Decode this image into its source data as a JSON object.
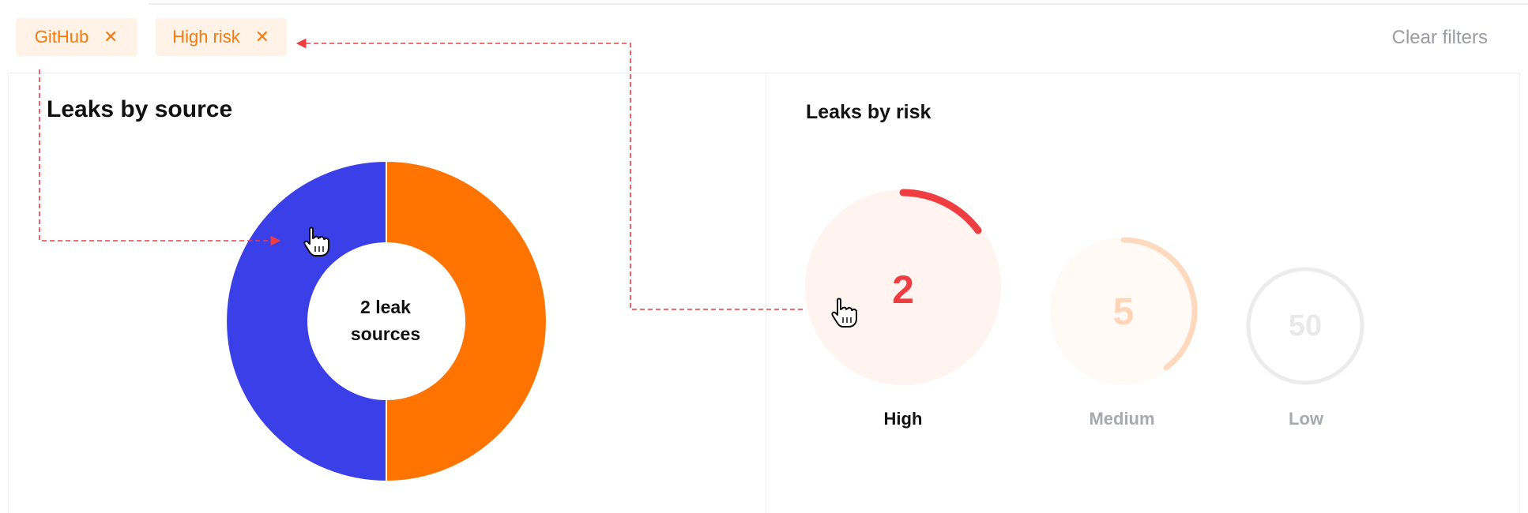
{
  "filters": {
    "chips": [
      {
        "label": "GitHub",
        "remove_icon": "close-icon"
      },
      {
        "label": "High risk",
        "remove_icon": "close-icon"
      }
    ],
    "clear_label": "Clear filters"
  },
  "leaks_by_source": {
    "title": "Leaks by source",
    "center_line1": "2 leak",
    "center_line2": "sources",
    "chart_data": {
      "type": "pie",
      "slices": [
        {
          "value": 50,
          "color": "#ff7300"
        },
        {
          "value": 50,
          "color": "#3b3fe8"
        }
      ]
    }
  },
  "leaks_by_risk": {
    "title": "Leaks by risk",
    "gauges": [
      {
        "value": "2",
        "label": "High",
        "color": "#ef3d42",
        "active": true
      },
      {
        "value": "5",
        "label": "Medium",
        "color": "#ffd5b5",
        "active": false
      },
      {
        "value": "50",
        "label": "Low",
        "color": "#e6e6e8",
        "active": false
      }
    ]
  },
  "colors": {
    "accent": "#f27a10",
    "annotation": "#ef3d42"
  },
  "icons": [
    "close-icon",
    "hand-pointer-icon"
  ]
}
